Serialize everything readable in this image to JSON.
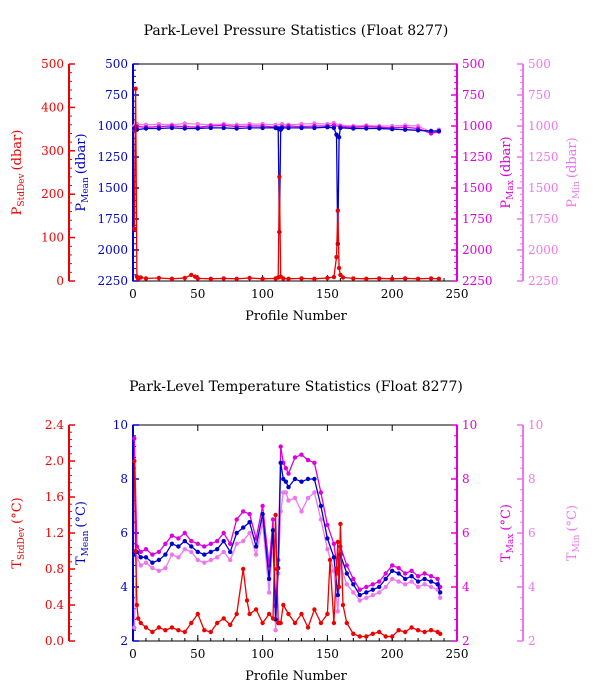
{
  "chart_data": [
    {
      "type": "line",
      "title": "Park-Level Pressure Statistics (Float 8277)",
      "xlabel": "Profile Number",
      "xlim": [
        0,
        250
      ],
      "xticks": [
        "0",
        "50",
        "100",
        "150",
        "200",
        "250"
      ],
      "axes": [
        {
          "id": "sd",
          "label_main": "P",
          "label_sub": "StdDev",
          "label_unit": "(dbar)",
          "color": "#ee0000",
          "ylim": [
            0,
            500
          ],
          "inverted": false,
          "ticks": [
            "0",
            "100",
            "200",
            "300",
            "400",
            "500"
          ]
        },
        {
          "id": "mean",
          "label_main": "P",
          "label_sub": "Mean",
          "label_unit": "(dbar)",
          "color": "#0000cc",
          "ylim": [
            500,
            2250
          ],
          "inverted": true,
          "ticks": [
            "500",
            "750",
            "1000",
            "1250",
            "1500",
            "1750",
            "2000",
            "2250"
          ]
        },
        {
          "id": "max",
          "label_main": "P",
          "label_sub": "Max",
          "label_unit": "(dbar)",
          "color": "#dd00dd",
          "ylim": [
            500,
            2250
          ],
          "inverted": true,
          "ticks": [
            "500",
            "750",
            "1000",
            "1250",
            "1500",
            "1750",
            "2000",
            "2250"
          ]
        },
        {
          "id": "min",
          "label_main": "P",
          "label_sub": "Min",
          "label_unit": "(dbar)",
          "color": "#ee77ee",
          "ylim": [
            500,
            2250
          ],
          "inverted": true,
          "ticks": [
            "500",
            "750",
            "1000",
            "1250",
            "1500",
            "1750",
            "2000",
            "2250"
          ]
        }
      ],
      "series": [
        {
          "axis": "min",
          "color": "#ee77ee",
          "x": [
            1,
            3,
            10,
            20,
            30,
            40,
            50,
            60,
            70,
            80,
            90,
            100,
            110,
            115,
            120,
            130,
            140,
            150,
            155,
            160,
            170,
            180,
            190,
            200,
            210,
            220,
            230,
            236
          ],
          "values": [
            1000,
            985,
            990,
            985,
            990,
            980,
            985,
            990,
            985,
            990,
            985,
            985,
            990,
            985,
            990,
            985,
            980,
            985,
            975,
            995,
            1000,
            995,
            1000,
            1000,
            995,
            1000,
            1050,
            1030
          ]
        },
        {
          "axis": "max",
          "color": "#dd00dd",
          "x": [
            1,
            3,
            10,
            20,
            30,
            40,
            50,
            60,
            70,
            80,
            90,
            100,
            110,
            115,
            120,
            130,
            140,
            150,
            155,
            160,
            170,
            180,
            190,
            200,
            210,
            220,
            230,
            236
          ],
          "values": [
            1030,
            1005,
            1010,
            1005,
            1000,
            1005,
            1010,
            1000,
            995,
            1005,
            1000,
            1000,
            1010,
            1005,
            1000,
            1005,
            1000,
            1000,
            995,
            1005,
            1010,
            1005,
            1010,
            1015,
            1010,
            1020,
            1060,
            1045
          ]
        },
        {
          "axis": "mean",
          "color": "#0000cc",
          "x": [
            1,
            2,
            3,
            10,
            20,
            30,
            40,
            50,
            60,
            70,
            80,
            90,
            100,
            110,
            112,
            113,
            114,
            115,
            120,
            130,
            140,
            150,
            155,
            157,
            158,
            159,
            160,
            170,
            180,
            190,
            200,
            210,
            220,
            230,
            236
          ],
          "values": [
            1020,
            1010,
            1030,
            1020,
            1020,
            1015,
            1020,
            1020,
            1015,
            1015,
            1020,
            1015,
            1015,
            1015,
            1020,
            1855,
            1030,
            1015,
            1015,
            1015,
            1015,
            1010,
            1015,
            1070,
            1950,
            1090,
            1015,
            1020,
            1020,
            1020,
            1025,
            1030,
            1035,
            1040,
            1040
          ]
        },
        {
          "axis": "sd",
          "color": "#ee0000",
          "x": [
            1,
            2,
            3,
            4,
            6,
            10,
            20,
            30,
            40,
            45,
            48,
            50,
            60,
            70,
            80,
            90,
            100,
            110,
            112,
            113,
            114,
            116,
            120,
            130,
            140,
            150,
            155,
            157,
            158,
            159,
            160,
            162,
            170,
            180,
            190,
            200,
            210,
            220,
            230,
            236
          ],
          "values": [
            120,
            443,
            10,
            5,
            8,
            6,
            7,
            5,
            7,
            14,
            10,
            6,
            5,
            6,
            5,
            7,
            5,
            6,
            8,
            240,
            10,
            6,
            5,
            6,
            5,
            7,
            9,
            55,
            162,
            30,
            14,
            8,
            6,
            5,
            6,
            5,
            6,
            5,
            6,
            5
          ]
        }
      ]
    },
    {
      "type": "line",
      "title": "Park-Level Temperature Statistics (Float 8277)",
      "xlabel": "Profile Number",
      "xlim": [
        0,
        250
      ],
      "xticks": [
        "0",
        "50",
        "100",
        "150",
        "200",
        "250"
      ],
      "axes": [
        {
          "id": "sd",
          "label_main": "T",
          "label_sub": "StdDev",
          "label_unit": "(°C)",
          "color": "#ee0000",
          "ylim": [
            0,
            2.4
          ],
          "inverted": false,
          "ticks": [
            "0.0",
            "0.4",
            "0.8",
            "1.2",
            "1.6",
            "2.0",
            "2.4"
          ]
        },
        {
          "id": "mean",
          "label_main": "T",
          "label_sub": "Mean",
          "label_unit": "(°C)",
          "color": "#0000cc",
          "ylim": [
            2,
            10
          ],
          "inverted": false,
          "ticks": [
            "2",
            "4",
            "6",
            "8",
            "10"
          ]
        },
        {
          "id": "max",
          "label_main": "T",
          "label_sub": "Max",
          "label_unit": "(°C)",
          "color": "#dd00dd",
          "ylim": [
            2,
            10
          ],
          "inverted": false,
          "ticks": [
            "2",
            "4",
            "6",
            "8",
            "10"
          ]
        },
        {
          "id": "min",
          "label_main": "T",
          "label_sub": "Min",
          "label_unit": "(°C)",
          "color": "#ee77ee",
          "ylim": [
            2,
            10
          ],
          "inverted": false,
          "ticks": [
            "2",
            "4",
            "6",
            "8",
            "10"
          ]
        }
      ],
      "series": [
        {
          "axis": "min",
          "color": "#ee77ee",
          "x": [
            1,
            3,
            6,
            10,
            15,
            20,
            25,
            30,
            35,
            40,
            45,
            50,
            55,
            60,
            65,
            70,
            75,
            80,
            85,
            90,
            95,
            100,
            105,
            108,
            110,
            112,
            114,
            116,
            118,
            120,
            125,
            130,
            135,
            140,
            145,
            150,
            155,
            158,
            160,
            165,
            170,
            175,
            180,
            185,
            190,
            195,
            200,
            205,
            210,
            215,
            220,
            225,
            230,
            235,
            237
          ],
          "values": [
            2.5,
            5.1,
            4.8,
            4.9,
            4.7,
            4.6,
            4.7,
            5.2,
            5.1,
            5.4,
            5.3,
            5.0,
            4.9,
            5.0,
            5.1,
            5.3,
            5.0,
            5.6,
            5.7,
            6.0,
            5.2,
            6.4,
            3.8,
            5.7,
            2.4,
            4.5,
            6.8,
            7.5,
            7.5,
            7.2,
            7.3,
            6.8,
            7.3,
            7.5,
            6.5,
            5.4,
            4.6,
            3.1,
            4.8,
            4.1,
            3.8,
            3.5,
            3.6,
            3.7,
            3.8,
            4.0,
            4.3,
            4.2,
            4.1,
            4.2,
            4.0,
            4.1,
            4.0,
            3.9,
            3.6
          ]
        },
        {
          "axis": "max",
          "color": "#dd00dd",
          "x": [
            1,
            3,
            6,
            10,
            15,
            20,
            25,
            30,
            35,
            40,
            45,
            50,
            55,
            60,
            65,
            70,
            75,
            80,
            85,
            90,
            95,
            100,
            105,
            108,
            110,
            112,
            114,
            116,
            118,
            120,
            125,
            130,
            135,
            140,
            145,
            150,
            155,
            158,
            160,
            165,
            170,
            175,
            180,
            185,
            190,
            195,
            200,
            205,
            210,
            215,
            220,
            225,
            230,
            235,
            237
          ],
          "values": [
            9.5,
            5.5,
            5.3,
            5.4,
            5.2,
            5.3,
            5.6,
            5.9,
            5.8,
            6.0,
            5.7,
            5.6,
            5.5,
            5.6,
            5.7,
            6.0,
            5.6,
            6.5,
            6.8,
            6.7,
            5.8,
            7.0,
            4.8,
            6.5,
            3.3,
            5.0,
            9.2,
            8.6,
            8.4,
            8.2,
            8.8,
            8.9,
            8.7,
            8.6,
            7.5,
            6.3,
            5.6,
            4.5,
            5.5,
            4.8,
            4.3,
            3.9,
            4.0,
            4.1,
            4.2,
            4.5,
            4.8,
            4.7,
            4.5,
            4.6,
            4.4,
            4.5,
            4.4,
            4.3,
            4.0
          ]
        },
        {
          "axis": "mean",
          "color": "#0000cc",
          "x": [
            1,
            3,
            6,
            10,
            15,
            20,
            25,
            30,
            35,
            40,
            45,
            50,
            55,
            60,
            65,
            70,
            75,
            80,
            85,
            90,
            95,
            100,
            105,
            108,
            110,
            112,
            114,
            116,
            118,
            120,
            125,
            130,
            135,
            140,
            145,
            150,
            155,
            158,
            160,
            165,
            170,
            175,
            180,
            185,
            190,
            195,
            200,
            205,
            210,
            215,
            220,
            225,
            230,
            235,
            237
          ],
          "values": [
            5.2,
            5.3,
            5.1,
            5.1,
            4.9,
            5.0,
            5.2,
            5.6,
            5.5,
            5.7,
            5.5,
            5.3,
            5.2,
            5.3,
            5.4,
            5.7,
            5.3,
            6.0,
            6.2,
            6.4,
            5.5,
            6.7,
            4.3,
            6.1,
            2.8,
            4.7,
            8.6,
            8.0,
            7.9,
            7.7,
            8.0,
            7.9,
            8.0,
            8.0,
            7.0,
            5.8,
            5.1,
            3.7,
            5.2,
            4.5,
            4.1,
            3.7,
            3.8,
            3.9,
            4.0,
            4.3,
            4.6,
            4.5,
            4.3,
            4.4,
            4.2,
            4.3,
            4.2,
            4.1,
            3.8
          ]
        },
        {
          "axis": "sd",
          "color": "#ee0000",
          "x": [
            1,
            2,
            3,
            4,
            6,
            10,
            15,
            20,
            25,
            30,
            35,
            40,
            45,
            50,
            55,
            60,
            65,
            70,
            75,
            80,
            85,
            88,
            90,
            95,
            100,
            105,
            108,
            110,
            111,
            112,
            113,
            114,
            116,
            120,
            125,
            130,
            135,
            140,
            145,
            150,
            152,
            155,
            157,
            158,
            159,
            160,
            162,
            165,
            170,
            175,
            180,
            185,
            190,
            195,
            200,
            205,
            210,
            215,
            220,
            225,
            230,
            235,
            237
          ],
          "values": [
            2.0,
            1.0,
            0.4,
            0.25,
            0.2,
            0.15,
            0.1,
            0.15,
            0.12,
            0.15,
            0.12,
            0.1,
            0.2,
            0.3,
            0.12,
            0.1,
            0.2,
            0.25,
            0.18,
            0.3,
            0.8,
            0.45,
            0.3,
            0.35,
            0.2,
            0.3,
            0.25,
            1.4,
            0.8,
            0.2,
            0.2,
            0.2,
            0.4,
            0.3,
            0.2,
            0.3,
            0.15,
            0.35,
            0.2,
            0.3,
            0.9,
            0.2,
            0.8,
            1.1,
            0.6,
            1.3,
            0.4,
            0.2,
            0.08,
            0.05,
            0.05,
            0.08,
            0.1,
            0.05,
            0.05,
            0.12,
            0.1,
            0.15,
            0.12,
            0.1,
            0.12,
            0.1,
            0.08
          ]
        }
      ]
    }
  ]
}
